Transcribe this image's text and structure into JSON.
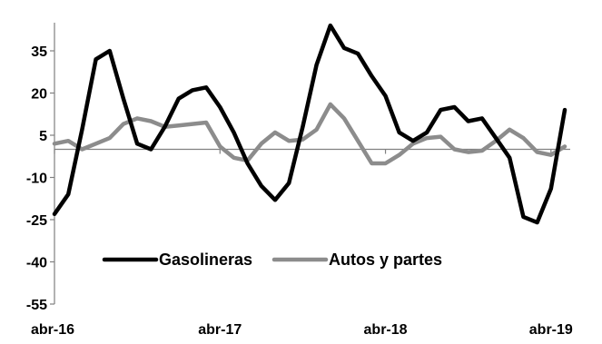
{
  "chart_data": {
    "type": "line",
    "title": "",
    "xlabel": "",
    "ylabel": "",
    "ylim": [
      -55,
      45
    ],
    "yticks": [
      -55,
      -40,
      -25,
      -10,
      5,
      20,
      35
    ],
    "zero_line": 0,
    "grid": false,
    "legend_position": "bottom-center",
    "x_tick_labels": [
      "abr-16",
      "abr-17",
      "abr-18",
      "abr-19"
    ],
    "x_tick_index": [
      0,
      12,
      24,
      36
    ],
    "colors": {
      "Gasolineras": "#000000",
      "Autos y partes": "#8c8c8c",
      "axis": "#808080"
    },
    "series": [
      {
        "name": "Gasolineras",
        "values": [
          -23,
          -16,
          7,
          32,
          35,
          18,
          2,
          0,
          8,
          18,
          21,
          22,
          15,
          6,
          -5,
          -13,
          -18,
          -12,
          8,
          30,
          44,
          36,
          34,
          26,
          19,
          6,
          3,
          6,
          14,
          15,
          10,
          11,
          4,
          -3,
          -24,
          -26,
          -14,
          14
        ]
      },
      {
        "name": "Autos y partes",
        "values": [
          2,
          3,
          0,
          2,
          4,
          9,
          11,
          10,
          8,
          8.5,
          9,
          9.5,
          1,
          -3,
          -4,
          2,
          6,
          3,
          3.5,
          7,
          16,
          11,
          3,
          -5,
          -5,
          -2,
          2,
          4,
          4.5,
          0,
          -1,
          -0.5,
          3,
          7,
          4,
          -1,
          -2,
          1
        ]
      }
    ]
  }
}
